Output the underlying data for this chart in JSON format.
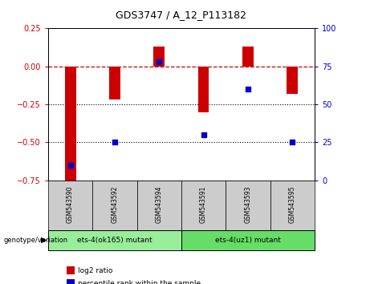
{
  "title": "GDS3747 / A_12_P113182",
  "samples": [
    "GSM543590",
    "GSM543592",
    "GSM543594",
    "GSM543591",
    "GSM543593",
    "GSM543595"
  ],
  "log2_ratios": [
    -0.78,
    -0.22,
    0.13,
    -0.3,
    0.13,
    -0.18
  ],
  "percentile_ranks": [
    10,
    25,
    78,
    30,
    60,
    25
  ],
  "ylim_left": [
    -0.75,
    0.25
  ],
  "ylim_right": [
    0,
    100
  ],
  "bar_color": "#cc0000",
  "dot_color": "#0000cc",
  "hline_color": "#cc0000",
  "dotline1": -0.25,
  "dotline2": -0.5,
  "bar_width": 0.25,
  "groups": [
    {
      "label": "ets-4(ok165) mutant",
      "color": "#99ee99",
      "start": 0,
      "end": 3
    },
    {
      "label": "ets-4(uz1) mutant",
      "color": "#66dd66",
      "start": 3,
      "end": 6
    }
  ],
  "genotype_label": "genotype/variation",
  "legend_items": [
    {
      "label": "log2 ratio",
      "color": "#cc0000"
    },
    {
      "label": "percentile rank within the sample",
      "color": "#0000cc"
    }
  ],
  "tick_color_left": "#cc0000",
  "tick_color_right": "#0000cc",
  "label_bg": "#cccccc"
}
